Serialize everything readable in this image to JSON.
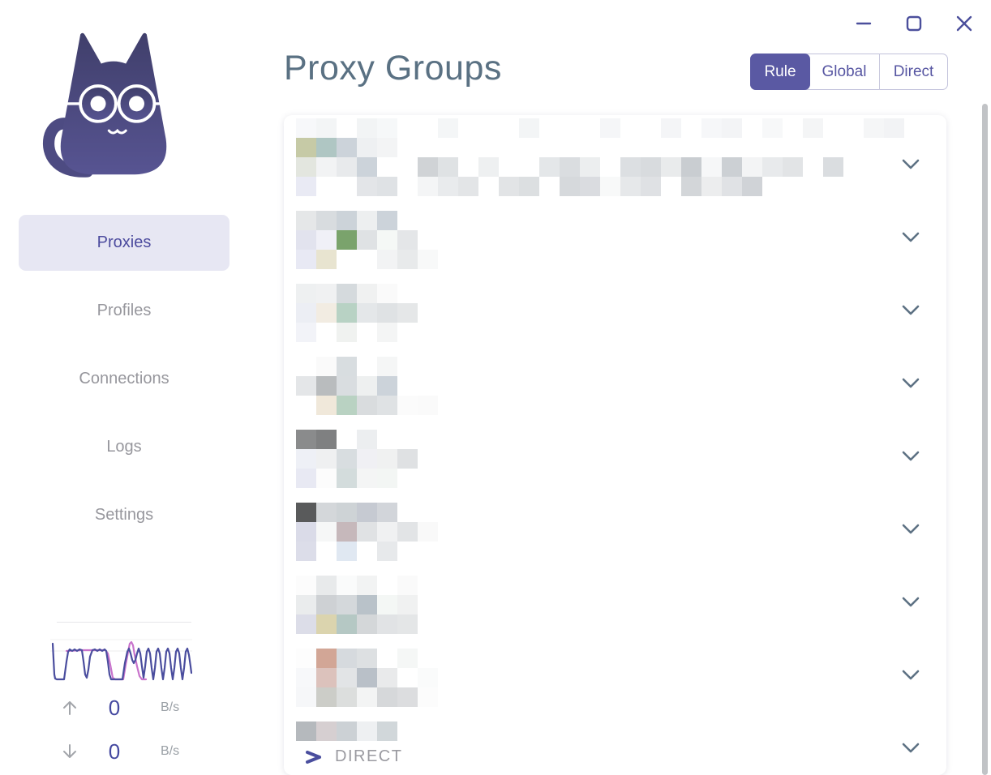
{
  "header": {
    "title": "Proxy Groups",
    "modes": [
      {
        "label": "Rule",
        "active": true
      },
      {
        "label": "Global",
        "active": false
      },
      {
        "label": "Direct",
        "active": false
      }
    ]
  },
  "window_controls": [
    {
      "name": "minimize",
      "icon": "minimize-icon"
    },
    {
      "name": "maximize",
      "icon": "maximize-icon"
    },
    {
      "name": "close",
      "icon": "close-icon"
    }
  ],
  "sidebar": {
    "items": [
      {
        "label": "Proxies",
        "active": true
      },
      {
        "label": "Profiles",
        "active": false
      },
      {
        "label": "Connections",
        "active": false
      },
      {
        "label": "Logs",
        "active": false
      },
      {
        "label": "Settings",
        "active": false
      }
    ],
    "traffic": {
      "up": {
        "value": "0",
        "unit": "B/s"
      },
      "down": {
        "value": "0",
        "unit": "B/s"
      },
      "graph_colors": {
        "upload": "#4a4d9e",
        "download": "#c873cc"
      }
    }
  },
  "groups": {
    "direct_label": "DIRECT",
    "top_strip": [
      "#f7f8fa",
      "#f3f5f6",
      "0",
      "#f2f4f5",
      "#f6f8f9",
      "0",
      "0",
      "#f4f6f7",
      "0",
      "0",
      "0",
      "#f3f5f6",
      "0",
      "0",
      "0",
      "#f5f6f8",
      "0",
      "0",
      "#f4f5f7",
      "0",
      "#f6f7f9",
      "#f3f4f6",
      "0",
      "#f7f8f9",
      "0",
      "#f4f5f6",
      "0",
      "0",
      "#f5f6f7",
      "#f2f3f5",
      "0"
    ],
    "rows": [
      {
        "lines": [
          [
            "#c6caa6",
            "#afc6c3",
            "#ccd3da",
            "#eef0f2",
            "#f3f4f5"
          ],
          [
            "#e3e6df",
            "#f2f3f4",
            "#e8eaec",
            "#ccd3da",
            "#ffffff",
            "0",
            "#d0d3d6",
            "#dfe2e4",
            "#ffffff",
            "#eef0f1",
            "#ffffff",
            "#ffffff",
            "#e4e7e9",
            "#dadde0",
            "#eceeef",
            "#ffffff",
            "#dcdfe2",
            "#d8dbde",
            "#e9ebec",
            "#c9cdd1",
            "#f6f7f8",
            "#ccd0d4",
            "#f3f4f5",
            "#e8eaec",
            "#e2e4e6",
            "#ffffff",
            "#dadde0"
          ],
          [
            "#e9eaf4",
            "#ffffff",
            "#ffffff",
            "#e3e5e8",
            "#dfe2e5",
            "0",
            "#f4f5f6",
            "#e9ebed",
            "#e3e5e7",
            "#ffffff",
            "#e2e4e6",
            "#dcdfe1",
            "#ffffff",
            "#d6d9dc",
            "#dadce0",
            "#f8f9f9",
            "#e6e8ea",
            "#dfe1e4",
            "#ffffff",
            "#d3d6d9",
            "#ecedee",
            "#e0e2e5",
            "#d0d3d7"
          ]
        ]
      },
      {
        "lines": [
          [
            "#e5e7e8",
            "#d8dcdf",
            "#ccd3d9",
            "#edeff0",
            "#ccd3da"
          ],
          [
            "#e2e3ee",
            "#f0f0f7",
            "#7aa36c",
            "#dfe2e4",
            "#f5f8f6",
            "#e4e6e8"
          ],
          [
            "#e8e9f4",
            "#e8e4d0",
            "#ffffff",
            "#ffffff",
            "#f2f3f4",
            "#e8eaeb",
            "#f8f9f9"
          ]
        ]
      },
      {
        "lines": [
          [
            "#eef0f1",
            "#f0f1f2",
            "#d5dadd",
            "#f0f1f1",
            "#fafafa"
          ],
          [
            "#eceef4",
            "#f2ece2",
            "#b8d2c4",
            "#e4e7e9",
            "#dfe2e4",
            "#e5e7e8"
          ],
          [
            "#f2f3f8",
            "#ffffff",
            "#f0f2f0",
            "#ffffff",
            "#f4f5f5"
          ]
        ]
      },
      {
        "lines": [
          [
            "#ffffff",
            "#fafafa",
            "#d8dde0",
            "#ffffff",
            "#f5f6f6"
          ],
          [
            "#e4e6e8",
            "#b9bcbe",
            "#d9dde0",
            "#eef0f0",
            "#ccd3da"
          ],
          [
            "#ffffff",
            "#f0e8da",
            "#b9d2c2",
            "#d9dcde",
            "#dfe2e4",
            "#fbfbfb",
            "#fafafa"
          ]
        ]
      },
      {
        "lines": [
          [
            "#8a8b8c",
            "#7f8081",
            "#ffffff",
            "#eceef0"
          ],
          [
            "#eef0f6",
            "#eff0f1",
            "#d8dde0",
            "#f0f0f4",
            "#f0f1f1",
            "#dfe1e3"
          ],
          [
            "#e8e9f3",
            "#fcfcfc",
            "#d3dcdc",
            "#f4f5f5",
            "#f3f6f4"
          ]
        ]
      },
      {
        "lines": [
          [
            "#595a5b",
            "#d4d7da",
            "#ced3d6",
            "#c6cad2",
            "#d2d5da"
          ],
          [
            "#dadbe8",
            "#f6f7f7",
            "#c6b8bb",
            "#e0e2e4",
            "#f0f1f2",
            "#e2e4e6",
            "#f9f9f9"
          ],
          [
            "#dcdde9",
            "#ffffff",
            "#e0e8f2",
            "#ffffff",
            "#e7e9eb"
          ]
        ]
      },
      {
        "lines": [
          [
            "#fcfcfc",
            "#e8eaeb",
            "#fafbfb",
            "#f2f3f3",
            "#ffffff",
            "#fafafa"
          ],
          [
            "#eaeced",
            "#ced1d4",
            "#d4d8db",
            "#b9c2c9",
            "#f4f7f5",
            "#f0f1f1"
          ],
          [
            "#dcdde8",
            "#dbd4ae",
            "#b5c8c4",
            "#d4d7d9",
            "#e1e3e5",
            "#e4e6e7"
          ]
        ]
      },
      {
        "lines": [
          [
            "#fdfdfd",
            "#d2a696",
            "#d6dade",
            "#dde0e2",
            "#ffffff",
            "#f5f7f6"
          ],
          [
            "#f7f8fa",
            "#dcc2bc",
            "#e2e4e6",
            "#b9c0c8",
            "#e9eaeb",
            "#ffffff",
            "#fafbfb"
          ],
          [
            "#f6f7f9",
            "#cccdc8",
            "#dcdedd",
            "#f3f4f4",
            "#d6d8da",
            "#dcdddf",
            "#fcfcfc"
          ]
        ]
      },
      {
        "direct": true,
        "lines": [
          [
            "#b5b9bd",
            "#d6cfd1",
            "#ccd1d5",
            "#eef0f2",
            "#d1d7da"
          ]
        ]
      }
    ]
  },
  "colors": {
    "accent_purple": "#5a59a3",
    "title_text": "#5a7183",
    "inactive_text": "#97979d",
    "chevron": "#5d7183",
    "active_item_bg": "#e7e7f3",
    "active_item_text": "#4c4b9e",
    "graph_upload": "#4a4d9e",
    "graph_download": "#c873cc"
  }
}
